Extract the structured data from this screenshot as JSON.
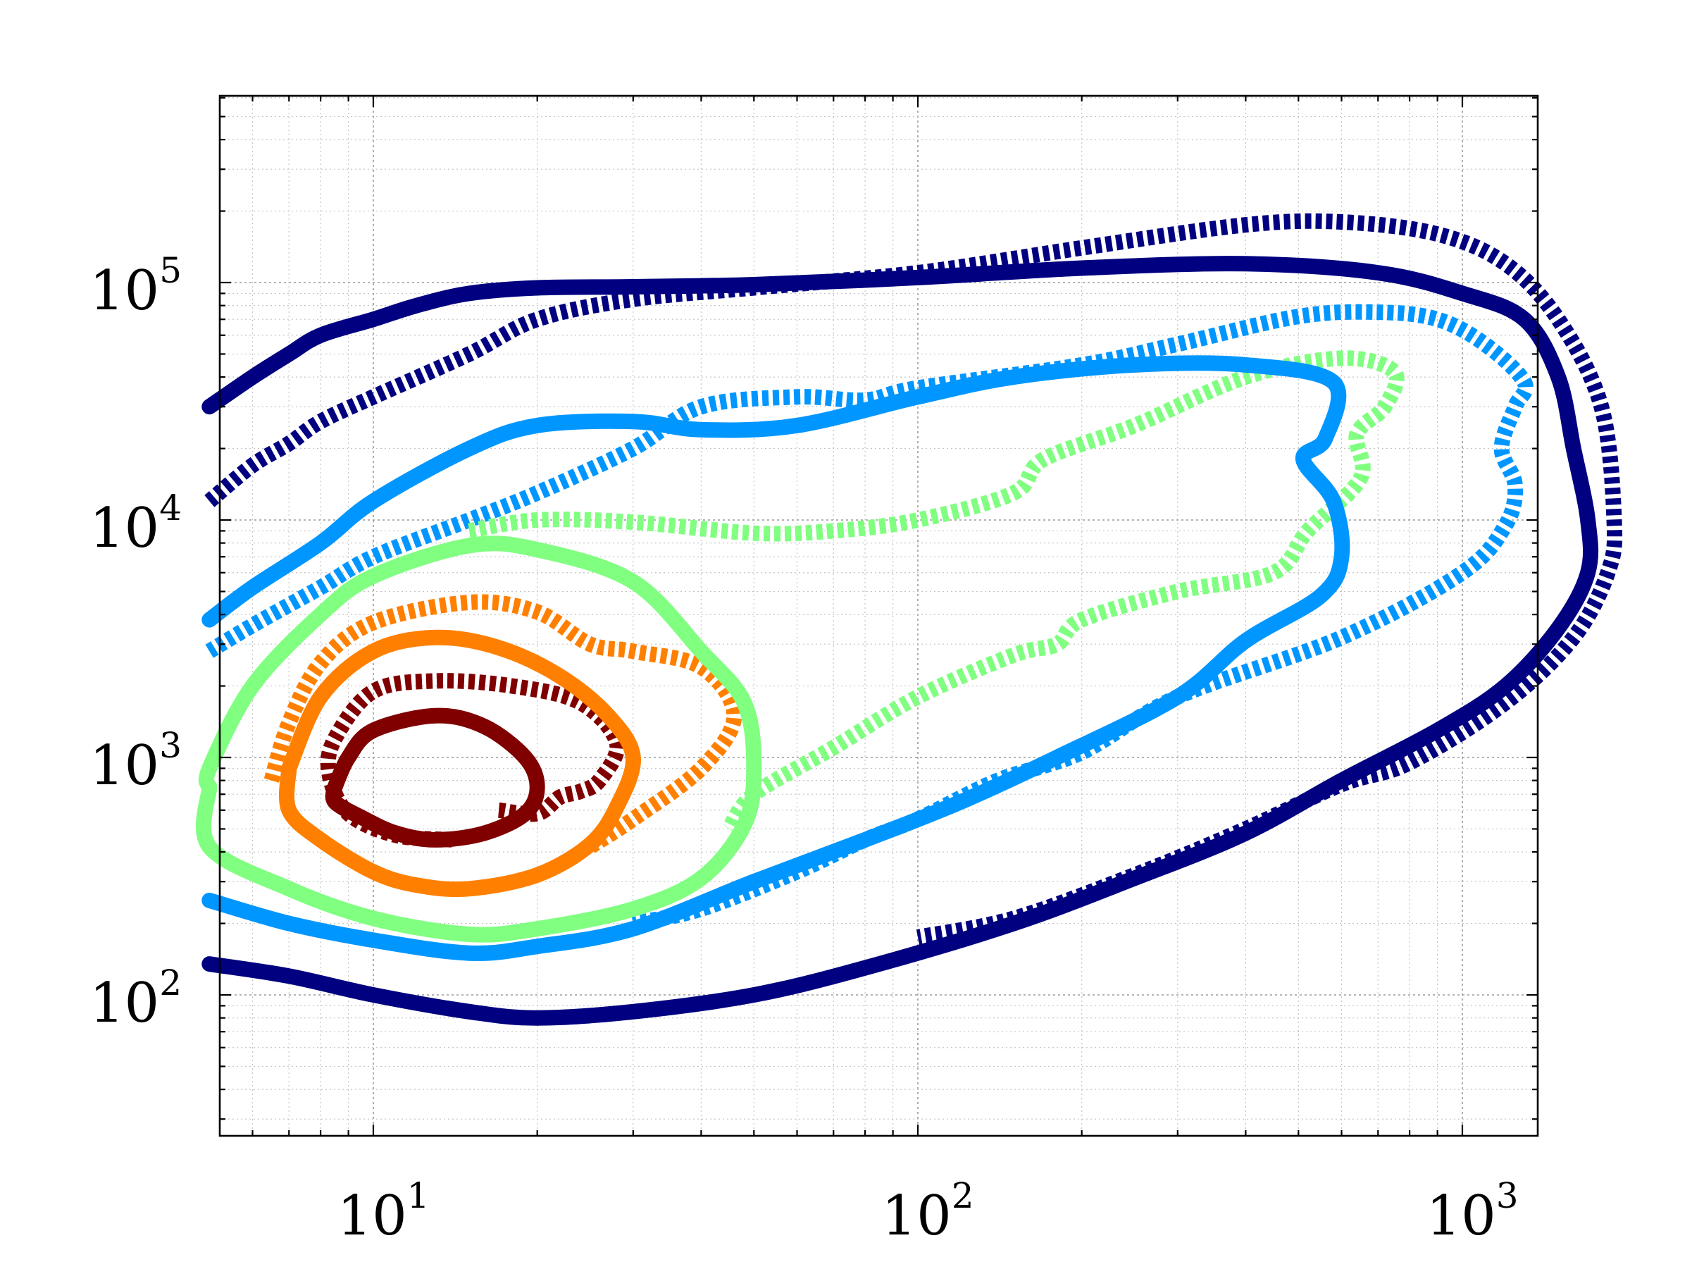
{
  "chart_data": {
    "type": "contour",
    "title": "",
    "xlabel": "",
    "ylabel": "",
    "xscale": "log",
    "yscale": "log",
    "xlim": [
      5,
      1900
    ],
    "ylim": [
      22,
      700000
    ],
    "grid": true,
    "legend": "none",
    "x_ticks": [
      {
        "value": 10,
        "base": "10",
        "exp": "1"
      },
      {
        "value": 100,
        "base": "10",
        "exp": "2"
      },
      {
        "value": 1000,
        "base": "10",
        "exp": "3"
      }
    ],
    "y_ticks": [
      {
        "value": 100,
        "base": "10",
        "exp": "2"
      },
      {
        "value": 1000,
        "base": "10",
        "exp": "3"
      },
      {
        "value": 10000,
        "base": "10",
        "exp": "4"
      },
      {
        "value": 100000,
        "base": "10",
        "exp": "5"
      }
    ],
    "series": [
      {
        "id": "navy-solid",
        "color": "#000080",
        "style": "solid",
        "closed": false,
        "points": [
          [
            5,
            30000
          ],
          [
            6,
            40000
          ],
          [
            7,
            50000
          ],
          [
            8,
            60000
          ],
          [
            10,
            70000
          ],
          [
            12,
            80000
          ],
          [
            15,
            90000
          ],
          [
            20,
            95000
          ],
          [
            30,
            96000
          ],
          [
            50,
            98000
          ],
          [
            100,
            105000
          ],
          [
            200,
            115000
          ],
          [
            400,
            120000
          ],
          [
            700,
            110000
          ],
          [
            1000,
            90000
          ],
          [
            1300,
            70000
          ],
          [
            1500,
            40000
          ],
          [
            1600,
            20000
          ],
          [
            1700,
            10000
          ],
          [
            1700,
            6000
          ],
          [
            1500,
            3500
          ],
          [
            1200,
            2000
          ],
          [
            900,
            1300
          ],
          [
            600,
            800
          ],
          [
            400,
            480
          ],
          [
            250,
            310
          ],
          [
            150,
            200
          ],
          [
            80,
            130
          ],
          [
            50,
            100
          ],
          [
            30,
            85
          ],
          [
            20,
            80
          ],
          [
            15,
            85
          ],
          [
            10,
            100
          ],
          [
            7,
            120
          ],
          [
            5,
            135
          ]
        ]
      },
      {
        "id": "navy-dotted",
        "color": "#000080",
        "style": "dashed",
        "closed": false,
        "points": [
          [
            5,
            12000
          ],
          [
            6,
            17000
          ],
          [
            7,
            21000
          ],
          [
            8,
            26000
          ],
          [
            10,
            33000
          ],
          [
            15,
            50000
          ],
          [
            20,
            70000
          ],
          [
            30,
            85000
          ],
          [
            50,
            95000
          ],
          [
            100,
            110000
          ],
          [
            200,
            140000
          ],
          [
            400,
            175000
          ],
          [
            600,
            180000
          ],
          [
            900,
            160000
          ],
          [
            1200,
            120000
          ],
          [
            1500,
            70000
          ],
          [
            1800,
            30000
          ],
          [
            1900,
            10000
          ],
          [
            1850,
            6000
          ],
          [
            1600,
            3200
          ],
          [
            1200,
            1700
          ],
          [
            800,
            950
          ],
          [
            600,
            770
          ],
          [
            400,
            500
          ],
          [
            250,
            320
          ],
          [
            150,
            210
          ],
          [
            100,
            175
          ]
        ]
      },
      {
        "id": "lightblue-solid",
        "color": "#0096ff",
        "style": "solid",
        "closed": false,
        "points": [
          [
            5,
            3800
          ],
          [
            6,
            5200
          ],
          [
            8,
            8000
          ],
          [
            10,
            12000
          ],
          [
            15,
            20000
          ],
          [
            20,
            25000
          ],
          [
            30,
            26000
          ],
          [
            40,
            24000
          ],
          [
            60,
            25000
          ],
          [
            100,
            33000
          ],
          [
            150,
            40000
          ],
          [
            250,
            45000
          ],
          [
            400,
            45000
          ],
          [
            580,
            38000
          ],
          [
            560,
            22000
          ],
          [
            510,
            18000
          ],
          [
            580,
            12000
          ],
          [
            600,
            7000
          ],
          [
            550,
            4800
          ],
          [
            400,
            3100
          ],
          [
            300,
            1800
          ],
          [
            180,
            1000
          ],
          [
            120,
            650
          ],
          [
            80,
            450
          ],
          [
            50,
            300
          ],
          [
            30,
            190
          ],
          [
            20,
            160
          ],
          [
            15,
            150
          ],
          [
            10,
            170
          ],
          [
            7,
            200
          ],
          [
            5,
            250
          ]
        ]
      },
      {
        "id": "lightblue-dotted",
        "color": "#0096ff",
        "style": "dashed",
        "closed": false,
        "points": [
          [
            5,
            2800
          ],
          [
            6,
            3600
          ],
          [
            8,
            5200
          ],
          [
            10,
            7000
          ],
          [
            15,
            10000
          ],
          [
            20,
            13000
          ],
          [
            30,
            20000
          ],
          [
            40,
            30000
          ],
          [
            60,
            33000
          ],
          [
            80,
            32000
          ],
          [
            100,
            36000
          ],
          [
            200,
            45000
          ],
          [
            300,
            55000
          ],
          [
            500,
            72000
          ],
          [
            700,
            75000
          ],
          [
            900,
            70000
          ],
          [
            1100,
            55000
          ],
          [
            1300,
            38000
          ],
          [
            1250,
            30000
          ],
          [
            1180,
            20000
          ],
          [
            1250,
            14000
          ],
          [
            1200,
            9500
          ],
          [
            1000,
            6000
          ],
          [
            600,
            3200
          ],
          [
            300,
            1800
          ],
          [
            200,
            1050
          ],
          [
            140,
            800
          ],
          [
            100,
            550
          ],
          [
            80,
            450
          ],
          [
            60,
            330
          ],
          [
            40,
            230
          ],
          [
            30,
            200
          ]
        ]
      },
      {
        "id": "green-solid",
        "color": "#80ff80",
        "style": "solid",
        "closed": true,
        "points": [
          [
            5,
            750
          ],
          [
            5,
            900
          ],
          [
            6,
            2000
          ],
          [
            8,
            4000
          ],
          [
            10,
            5800
          ],
          [
            15,
            7800
          ],
          [
            20,
            7500
          ],
          [
            30,
            5500
          ],
          [
            40,
            2800
          ],
          [
            48,
            1700
          ],
          [
            50,
            900
          ],
          [
            48,
            520
          ],
          [
            40,
            310
          ],
          [
            30,
            230
          ],
          [
            20,
            190
          ],
          [
            15,
            180
          ],
          [
            10,
            210
          ],
          [
            7,
            280
          ],
          [
            5,
            420
          ],
          [
            5,
            750
          ]
        ]
      },
      {
        "id": "green-dotted",
        "color": "#80ff80",
        "style": "dashed",
        "closed": false,
        "points": [
          [
            15,
            9000
          ],
          [
            20,
            10000
          ],
          [
            30,
            9800
          ],
          [
            50,
            8800
          ],
          [
            70,
            9000
          ],
          [
            100,
            10000
          ],
          [
            150,
            13000
          ],
          [
            170,
            18000
          ],
          [
            250,
            25000
          ],
          [
            400,
            40000
          ],
          [
            600,
            48000
          ],
          [
            750,
            42000
          ],
          [
            720,
            30000
          ],
          [
            640,
            23000
          ],
          [
            650,
            15000
          ],
          [
            520,
            9000
          ],
          [
            450,
            6000
          ],
          [
            300,
            5000
          ],
          [
            200,
            3800
          ],
          [
            180,
            3000
          ],
          [
            150,
            2700
          ],
          [
            100,
            1800
          ],
          [
            70,
            1100
          ],
          [
            50,
            700
          ],
          [
            45,
            500
          ]
        ]
      },
      {
        "id": "orange-solid",
        "color": "#ff8000",
        "style": "solid",
        "closed": true,
        "points": [
          [
            7,
            900
          ],
          [
            8,
            1800
          ],
          [
            10,
            2800
          ],
          [
            13,
            3200
          ],
          [
            17,
            2900
          ],
          [
            22,
            2200
          ],
          [
            27,
            1500
          ],
          [
            30,
            1000
          ],
          [
            28,
            620
          ],
          [
            25,
            430
          ],
          [
            20,
            320
          ],
          [
            15,
            280
          ],
          [
            12,
            290
          ],
          [
            10,
            330
          ],
          [
            8,
            450
          ],
          [
            7,
            600
          ],
          [
            7,
            900
          ]
        ]
      },
      {
        "id": "orange-dotted",
        "color": "#ff8000",
        "style": "dashed",
        "closed": false,
        "points": [
          [
            6.5,
            800
          ],
          [
            7,
            1400
          ],
          [
            8,
            2500
          ],
          [
            10,
            3700
          ],
          [
            15,
            4500
          ],
          [
            20,
            4100
          ],
          [
            25,
            3000
          ],
          [
            30,
            2800
          ],
          [
            40,
            2400
          ],
          [
            46,
            1500
          ],
          [
            40,
            900
          ],
          [
            30,
            550
          ],
          [
            25,
            420
          ]
        ]
      },
      {
        "id": "darkred-solid",
        "color": "#800000",
        "style": "solid",
        "closed": true,
        "points": [
          [
            8.5,
            750
          ],
          [
            9,
            1000
          ],
          [
            10,
            1300
          ],
          [
            13,
            1500
          ],
          [
            16,
            1350
          ],
          [
            19,
            1000
          ],
          [
            20,
            750
          ],
          [
            19,
            580
          ],
          [
            16,
            480
          ],
          [
            13,
            450
          ],
          [
            11,
            480
          ],
          [
            9.5,
            560
          ],
          [
            8.5,
            650
          ],
          [
            8.5,
            750
          ]
        ]
      },
      {
        "id": "darkred-dotted",
        "color": "#800000",
        "style": "dashed",
        "closed": false,
        "points": [
          [
            17,
            600
          ],
          [
            20,
            580
          ],
          [
            22,
            680
          ],
          [
            24,
            720
          ],
          [
            26,
            800
          ],
          [
            28,
            1150
          ],
          [
            24,
            1700
          ],
          [
            18,
            2000
          ],
          [
            13,
            2100
          ],
          [
            10,
            1900
          ],
          [
            8.5,
            1200
          ],
          [
            8.3,
            850
          ],
          [
            9,
            580
          ],
          [
            11,
            470
          ],
          [
            14,
            450
          ]
        ]
      }
    ]
  }
}
